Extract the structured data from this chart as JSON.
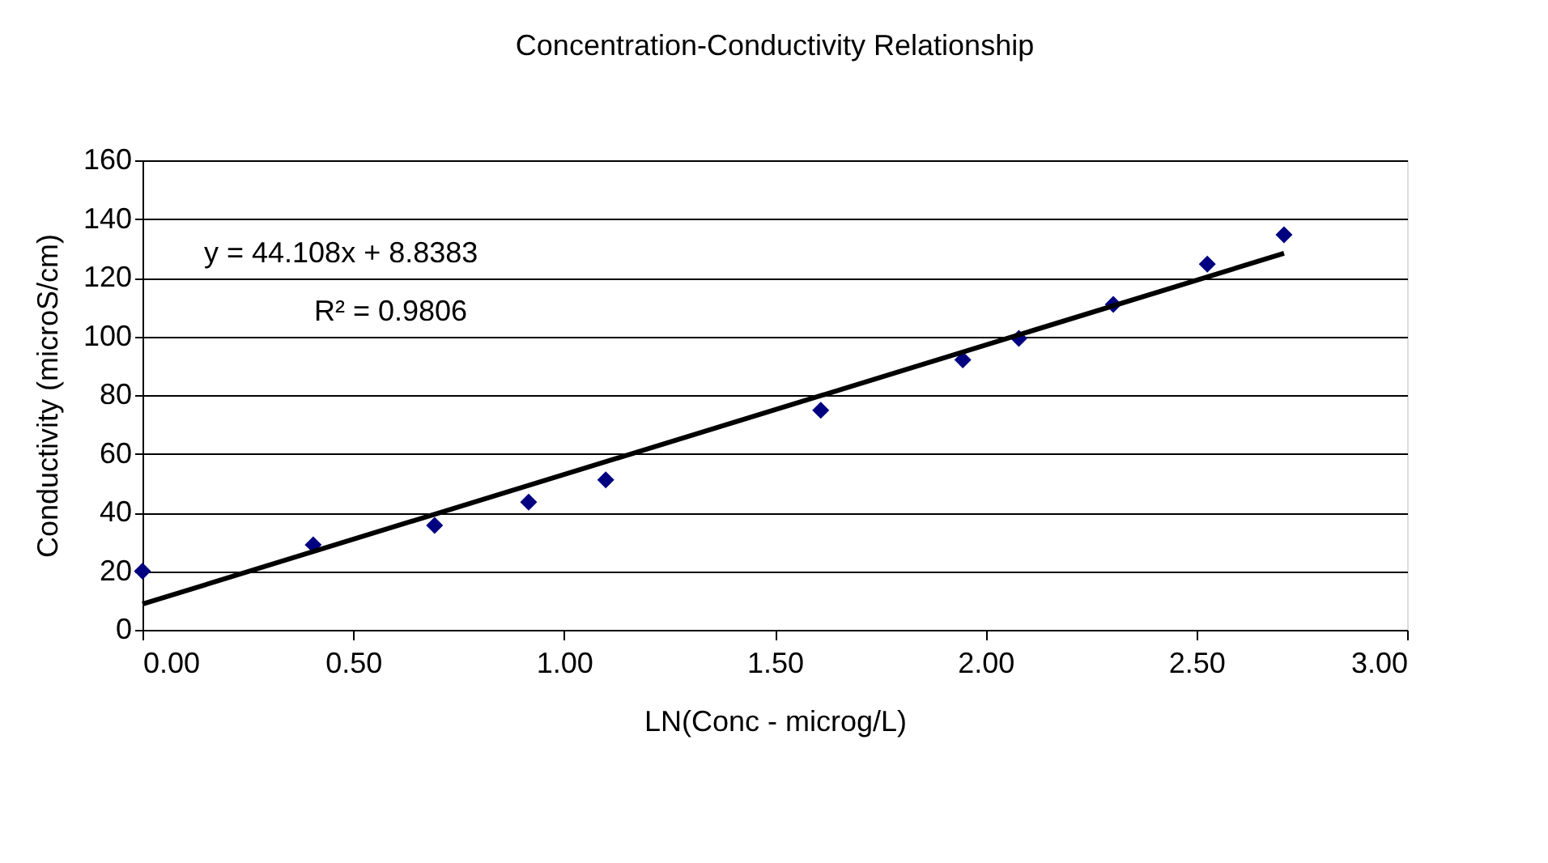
{
  "chart_data": {
    "type": "scatter",
    "title": "Concentration-Conductivity Relationship",
    "xlabel": "LN(Conc - microg/L)",
    "ylabel": "Conductivity  (microS/cm)",
    "x": [
      0,
      0.405,
      0.693,
      0.916,
      1.099,
      1.609,
      1.946,
      2.079,
      2.303,
      2.526,
      2.708
    ],
    "series": [
      {
        "color": "#000080",
        "marker": "diamond",
        "values": [
          20,
          29,
          35.6,
          43.5,
          51.1,
          74.8,
          92,
          99.3,
          110.9,
          124.6,
          134.6
        ]
      },
      {
        "type": "line",
        "color": "#000000",
        "line_style": "solid",
        "x": [
          0,
          2.708
        ],
        "values": [
          8.8,
          128.3
        ]
      }
    ],
    "annotations": [
      "y = 44.108x + 8.8383",
      "R² = 0.9806"
    ],
    "xlim": [
      0,
      3
    ],
    "xticks": [
      {
        "value": 0,
        "label": "0.00"
      },
      {
        "value": 0.5,
        "label": "0.50"
      },
      {
        "value": 1,
        "label": "1.00"
      },
      {
        "value": 1.5,
        "label": "1.50"
      },
      {
        "value": 2,
        "label": "2.00"
      },
      {
        "value": 2.5,
        "label": "2.50"
      },
      {
        "value": 3,
        "label": "3.00"
      }
    ],
    "ylim": [
      0,
      160
    ],
    "yticks": [
      0,
      20,
      40,
      60,
      80,
      100,
      120,
      140,
      160
    ],
    "grid": "y"
  }
}
